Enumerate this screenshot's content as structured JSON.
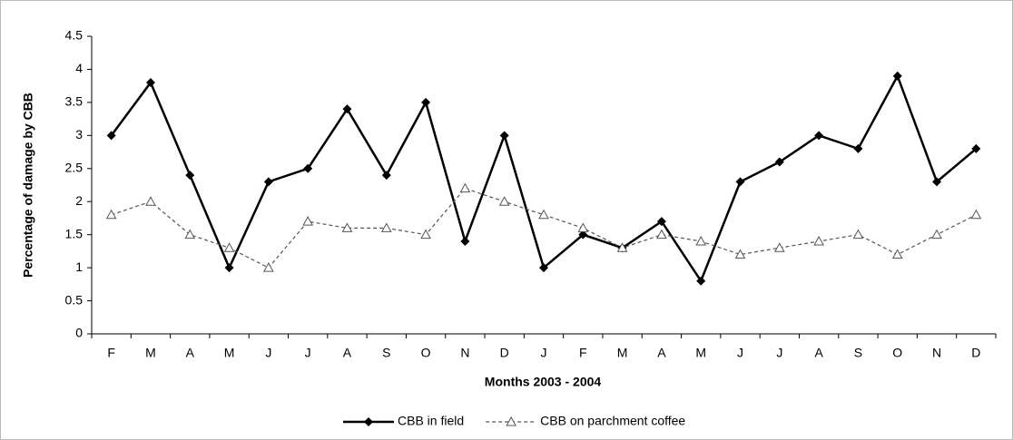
{
  "chart_data": {
    "type": "line",
    "x_label": "Months 2003 - 2004",
    "y_label": "Percentage of damage by CBB",
    "categories": [
      "F",
      "M",
      "A",
      "M",
      "J",
      "J",
      "A",
      "S",
      "O",
      "N",
      "D",
      "J",
      "F",
      "M",
      "A",
      "M",
      "J",
      "J",
      "A",
      "S",
      "O",
      "N",
      "D"
    ],
    "series": [
      {
        "name": "CBB in field",
        "color": "#000000",
        "marker": "diamond",
        "dashed": false,
        "values": [
          3,
          3.8,
          2.4,
          1,
          2.3,
          2.5,
          3.4,
          2.4,
          3.5,
          1.4,
          3,
          1,
          1.5,
          1.3,
          1.7,
          0.8,
          2.3,
          2.6,
          3,
          2.8,
          3.9,
          2.3,
          2.8
        ]
      },
      {
        "name": "CBB on parchment coffee",
        "color": "#555555",
        "marker": "triangle",
        "dashed": true,
        "values": [
          1.8,
          2,
          1.5,
          1.3,
          1,
          1.7,
          1.6,
          1.6,
          1.5,
          2.2,
          2,
          1.8,
          1.6,
          1.3,
          1.5,
          1.4,
          1.2,
          1.3,
          1.4,
          1.5,
          1.2,
          1.5,
          1.8
        ]
      }
    ],
    "ylim": [
      0,
      4.5
    ],
    "yticks": [
      0,
      0.5,
      1,
      1.5,
      2,
      2.5,
      3,
      3.5,
      4,
      4.5
    ],
    "grid": false,
    "legend": "bottom"
  }
}
